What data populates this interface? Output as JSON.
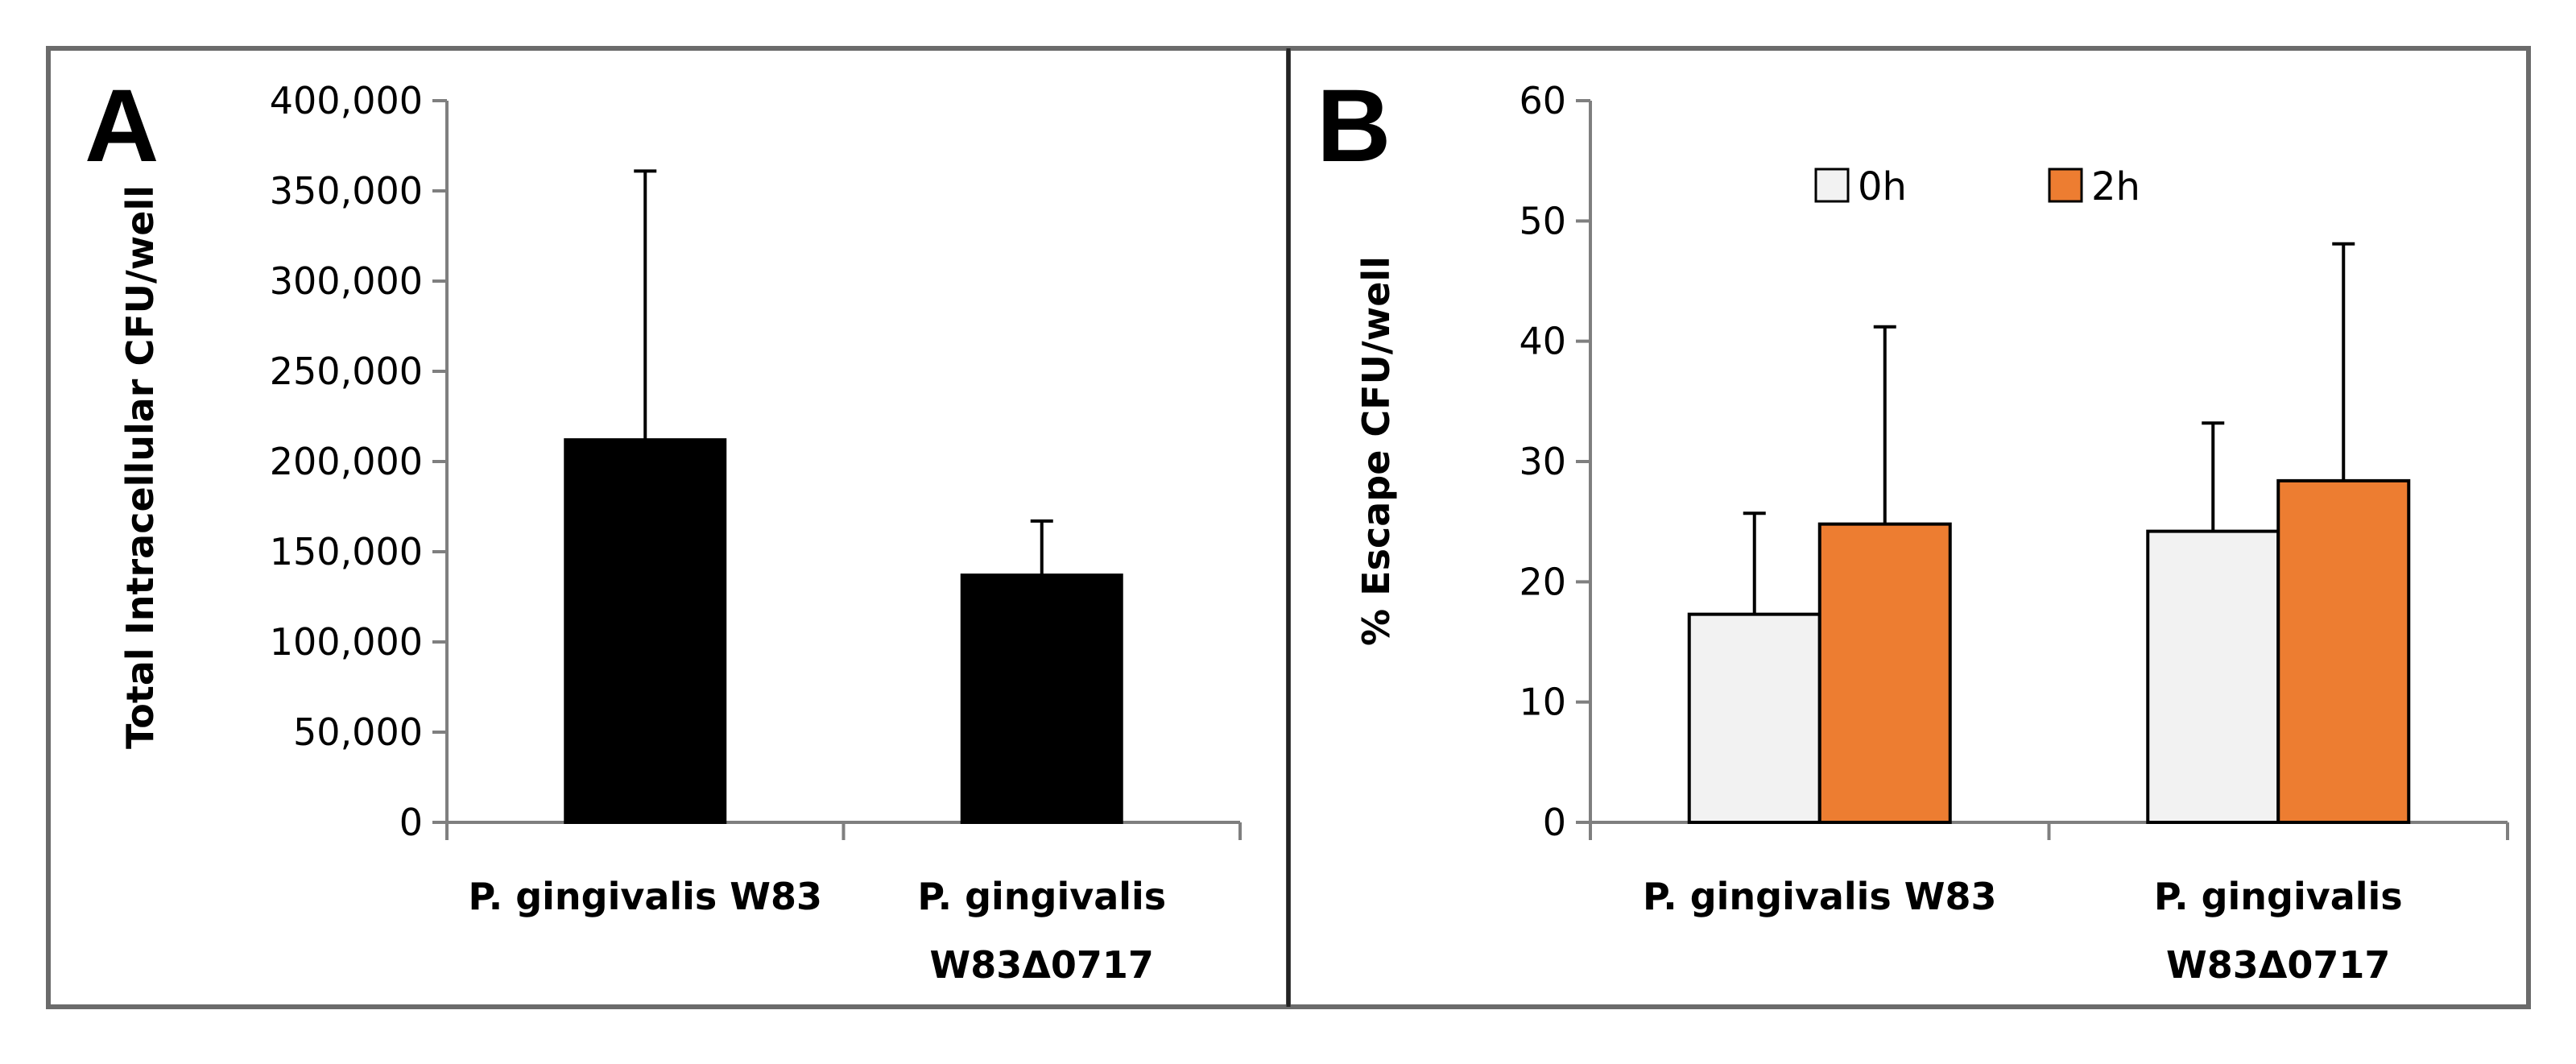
{
  "figure": {
    "background": "#ffffff",
    "frame_color": "#6b6b6b"
  },
  "chart_data": [
    {
      "type": "bar",
      "panel_label": "A",
      "title": "",
      "xlabel": "",
      "ylabel": "Total Intracellular CFU/well",
      "ylim": [
        0,
        400000
      ],
      "yticks": [
        0,
        50000,
        100000,
        150000,
        200000,
        250000,
        300000,
        350000,
        400000
      ],
      "ytick_labels": [
        "0",
        "50,000",
        "100,000",
        "150,000",
        "200,000",
        "250,000",
        "300,000",
        "350,000",
        "400,000"
      ],
      "categories": [
        [
          "P. gingivalis W83"
        ],
        [
          "P. gingivalis",
          "W83Δ0717"
        ]
      ],
      "series": [
        {
          "name": "",
          "color": "#000000",
          "values": [
            212000,
            137000
          ],
          "errors": [
            149000,
            30000
          ]
        }
      ],
      "legend": null
    },
    {
      "type": "bar",
      "panel_label": "B",
      "title": "",
      "xlabel": "",
      "ylabel": "% Escape CFU/well",
      "ylim": [
        0,
        60
      ],
      "yticks": [
        0,
        10,
        20,
        30,
        40,
        50,
        60
      ],
      "ytick_labels": [
        "0",
        "10",
        "20",
        "30",
        "40",
        "50",
        "60"
      ],
      "categories": [
        [
          "P. gingivalis W83"
        ],
        [
          "P. gingivalis",
          "W83Δ0717"
        ]
      ],
      "series": [
        {
          "name": "0h",
          "color": "#f2f2f2",
          "values": [
            17.3,
            24.2
          ],
          "errors": [
            8.4,
            9.0
          ]
        },
        {
          "name": "2h",
          "color": "#ed7d31",
          "values": [
            24.8,
            28.4
          ],
          "errors": [
            16.4,
            19.7
          ]
        }
      ],
      "legend": {
        "entries": [
          "0h",
          "2h"
        ],
        "placement": "top-center"
      }
    }
  ]
}
